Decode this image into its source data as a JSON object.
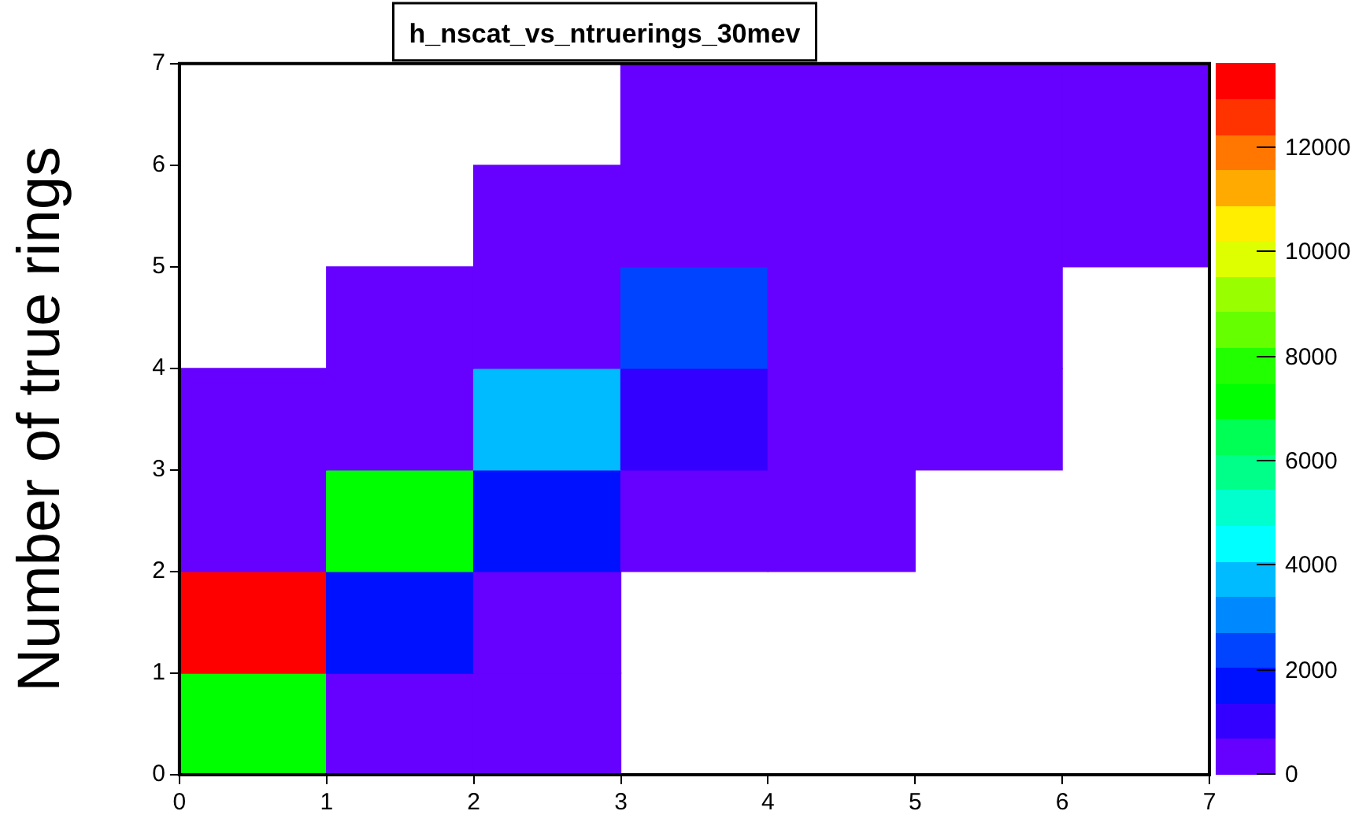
{
  "chart_data": {
    "type": "heatmap",
    "title": "h_nscat_vs_ntruerings_30mev",
    "ylabel": "Number of true rings",
    "x": [
      0.5,
      1.5,
      2.5,
      3.5,
      4.5,
      5.5,
      6.5
    ],
    "y": [
      6.5,
      5.5,
      4.5,
      3.5,
      2.5,
      1.5,
      0.5
    ],
    "xlim": [
      0,
      7
    ],
    "xticks": [
      0,
      1,
      2,
      3,
      4,
      5,
      6,
      7
    ],
    "ylim": [
      0,
      7
    ],
    "yticks": [
      0,
      1,
      2,
      3,
      4,
      5,
      6,
      7
    ],
    "cells": [
      [
        null,
        null,
        null,
        300,
        300,
        300,
        300
      ],
      [
        null,
        null,
        300,
        300,
        300,
        300,
        300
      ],
      [
        null,
        300,
        300,
        2100,
        300,
        300,
        null
      ],
      [
        300,
        300,
        3700,
        1000,
        300,
        300,
        null
      ],
      [
        300,
        7100,
        1700,
        300,
        300,
        null,
        null
      ],
      [
        13400,
        1700,
        300,
        null,
        null,
        null,
        null
      ],
      [
        7100,
        300,
        300,
        null,
        null,
        null,
        null
      ]
    ],
    "clim": [
      0,
      13620
    ],
    "cticks": [
      0,
      2000,
      4000,
      6000,
      8000,
      10000,
      12000
    ],
    "grid": false
  }
}
